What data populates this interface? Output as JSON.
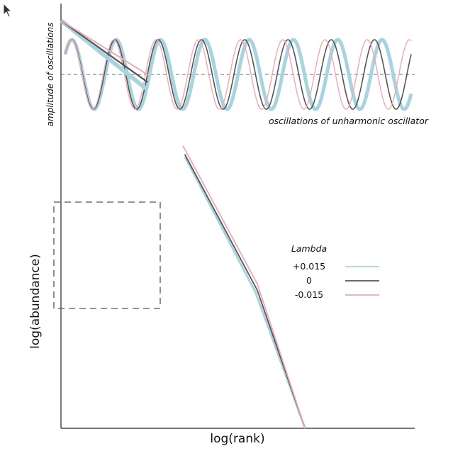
{
  "chart_data": {
    "type": "line",
    "axes": {
      "xlabel": "log(rank)",
      "ylabel": "log(abundance)"
    },
    "inset": {
      "ylabel": "amplitude of oscillations",
      "caption": "oscillations of unharmonic oscillator",
      "cycles": 8,
      "series": [
        {
          "lambda": 0.015,
          "color": "#a8d4e0"
        },
        {
          "lambda": 0,
          "color": "#555555"
        },
        {
          "lambda": -0.015,
          "color": "#f4a7b3"
        }
      ]
    },
    "legend": {
      "title": "Lambda",
      "placement": "center-right",
      "entries": [
        {
          "label": "+0.015",
          "color": "#a8d4e0"
        },
        {
          "label": "0",
          "color": "#555555"
        },
        {
          "label": "-0.015",
          "color": "#f4a7b3"
        }
      ]
    },
    "series": [
      {
        "name": "+0.015",
        "color": "#a8d4e0",
        "segments": [
          [
            [
              0.0,
              0.96
            ],
            [
              0.24,
              0.8
            ]
          ],
          [
            [
              0.35,
              0.64
            ],
            [
              0.55,
              0.32
            ],
            [
              0.69,
              0.0
            ]
          ]
        ]
      },
      {
        "name": "0",
        "color": "#555555",
        "segments": [
          [
            [
              0.0,
              0.96
            ],
            [
              0.245,
              0.815
            ]
          ],
          [
            [
              0.35,
              0.645
            ],
            [
              0.555,
              0.325
            ],
            [
              0.69,
              0.0
            ]
          ]
        ]
      },
      {
        "name": "-0.015",
        "color": "#f4a7b3",
        "segments": [
          [
            [
              0.0,
              0.96
            ],
            [
              0.25,
              0.83
            ]
          ],
          [
            [
              0.345,
              0.665
            ],
            [
              0.555,
              0.34
            ],
            [
              0.69,
              0.0
            ]
          ]
        ]
      }
    ]
  }
}
